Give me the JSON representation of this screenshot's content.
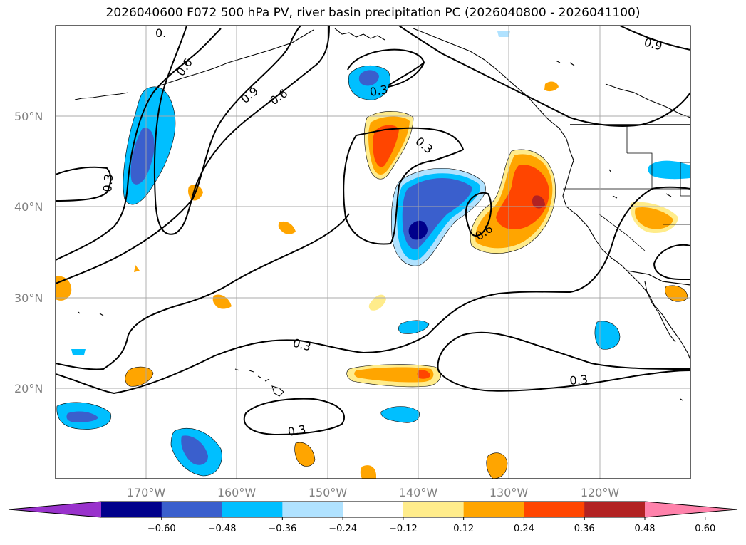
{
  "title": "2026040600 F072 500 hPa PV, river basin precipitation PC (2026040800 - 2026041100)",
  "map": {
    "lat_labels": [
      "50°N",
      "40°N",
      "30°N",
      "20°N"
    ],
    "lon_labels": [
      "170°W",
      "160°W",
      "150°W",
      "140°W",
      "130°W",
      "120°W"
    ],
    "contour_labels": [
      "0.",
      "0.6",
      "0.9",
      "0.6",
      "0.3",
      "0.3",
      "0.3",
      "0.6",
      "0.9",
      "0.3",
      "0.3",
      "0.3"
    ]
  },
  "colorbar": {
    "ticks": [
      "−0.60",
      "−0.48",
      "−0.36",
      "−0.24",
      "−0.12",
      "0.12",
      "0.24",
      "0.36",
      "0.48",
      "0.60"
    ],
    "colors": [
      "#9932cc",
      "#00008b",
      "#3a5fcd",
      "#00bfff",
      "#b0e2ff",
      "#ffffff",
      "#ffec8b",
      "#ffa500",
      "#ff4500",
      "#b22222",
      "#ff82ab"
    ]
  },
  "shading": {
    "blue_1": "#b0e2ff",
    "blue_2": "#00bfff",
    "blue_3": "#3a5fcd",
    "blue_4": "#00008b",
    "warm_1": "#ffec8b",
    "warm_2": "#ffa500",
    "warm_3": "#ff4500",
    "warm_4": "#b22222"
  }
}
